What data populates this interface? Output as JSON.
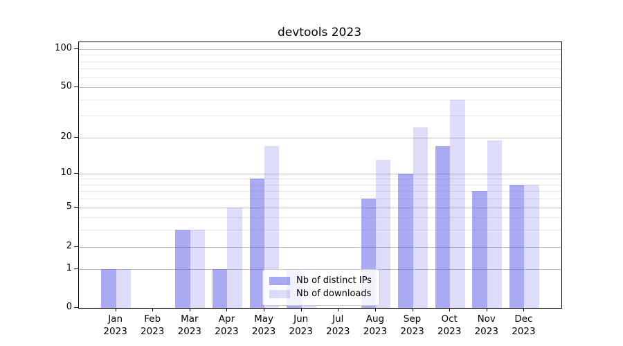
{
  "title": "devtools 2023",
  "legend": {
    "items": [
      {
        "label": "Nb of distinct IPs",
        "color": "rgba(85,85,230,0.5)"
      },
      {
        "label": "Nb of downloads",
        "color": "rgba(85,85,230,0.2)"
      }
    ]
  },
  "chart_data": {
    "type": "bar",
    "title": "devtools 2023",
    "categories": [
      "Jan 2023",
      "Feb 2023",
      "Mar 2023",
      "Apr 2023",
      "May 2023",
      "Jun 2023",
      "Jul 2023",
      "Aug 2023",
      "Sep 2023",
      "Oct 2023",
      "Nov 2023",
      "Dec 2023"
    ],
    "series": [
      {
        "name": "Nb of distinct IPs",
        "color": "rgba(85,85,230,0.5)",
        "values": [
          1,
          0,
          3,
          1,
          9,
          1,
          0,
          6,
          10,
          17,
          7,
          8
        ]
      },
      {
        "name": "Nb of downloads",
        "color": "rgba(85,85,230,0.2)",
        "values": [
          1,
          0,
          3,
          5,
          17,
          1,
          0,
          13,
          24,
          40,
          19,
          8
        ]
      }
    ],
    "xlabel": "",
    "ylabel": "",
    "yscale": "symlog-like",
    "ylim": [
      0,
      112
    ],
    "yticks": [
      0,
      1,
      2,
      5,
      10,
      20,
      50,
      100
    ],
    "minor_yticks": [
      3,
      4,
      6,
      7,
      8,
      9,
      30,
      40,
      60,
      70,
      80,
      90
    ],
    "grid": true,
    "legend_position": "lower center inside plot",
    "colors": {
      "grid_major": "#bdbdbd",
      "grid_minor": "#e8e8e8",
      "spine": "#000000",
      "legend_border": "#cccccc",
      "legend_bg": "rgba(255,255,255,0.85)"
    }
  }
}
